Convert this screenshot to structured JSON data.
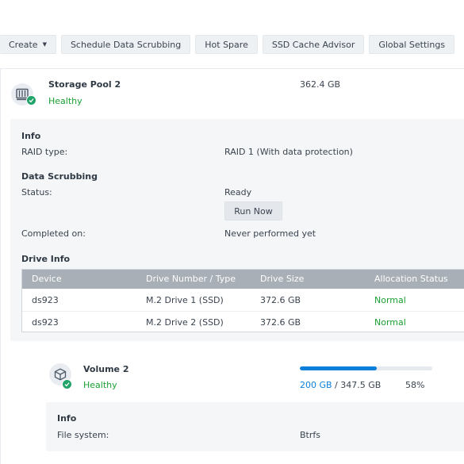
{
  "toolbar": {
    "create_label": "Create",
    "schedule_label": "Schedule Data Scrubbing",
    "hot_spare_label": "Hot Spare",
    "ssd_cache_label": "SSD Cache Advisor",
    "global_settings_label": "Global Settings"
  },
  "pool": {
    "name": "Storage Pool 2",
    "status": "Healthy",
    "size": "362.4 GB",
    "icon": "storage-pool-icon",
    "info": {
      "section_title": "Info",
      "raid_label": "RAID type:",
      "raid_value": "RAID 1 (With data protection)"
    },
    "scrubbing": {
      "section_title": "Data Scrubbing",
      "status_label": "Status:",
      "status_value": "Ready",
      "run_now_label": "Run Now",
      "completed_label": "Completed on:",
      "completed_value": "Never performed yet"
    },
    "drive_info": {
      "section_title": "Drive Info",
      "columns": [
        "Device",
        "Drive Number / Type",
        "Drive Size",
        "Allocation Status"
      ],
      "rows": [
        {
          "device": "ds923",
          "drive": "M.2 Drive 1 (SSD)",
          "size": "372.6 GB",
          "allocation": "Normal"
        },
        {
          "device": "ds923",
          "drive": "M.2 Drive 2 (SSD)",
          "size": "372.6 GB",
          "allocation": "Normal"
        }
      ]
    }
  },
  "volume": {
    "name": "Volume 2",
    "status": "Healthy",
    "icon": "volume-cube-icon",
    "used": "200 GB",
    "total_sep": " / 347.5 GB",
    "percent": "58%",
    "usage_fraction": 0.58,
    "info": {
      "section_title": "Info",
      "fs_label": "File system:",
      "fs_value": "Btrfs"
    }
  },
  "colors": {
    "healthy": "#1b9f33",
    "accent": "#0b7fd9",
    "badge": "#21a36a"
  }
}
